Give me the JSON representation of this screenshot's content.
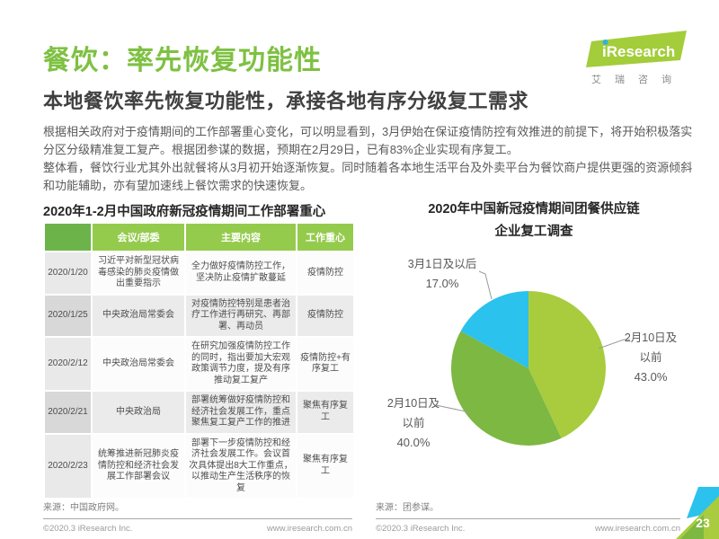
{
  "page": {
    "title": "餐饮：率先恢复功能性",
    "subtitle": "本地餐饮率先恢复功能性，承接各地有序分级复工需求",
    "paragraphs": [
      "根据相关政府对于疫情期间的工作部署重心变化，可以明显看到，3月伊始在保证疫情防控有效推进的前提下，将开始积极落实分区分级精准复工复产。根据团参谋的数据，预期在2月29日，已有83%企业实现有序复工。",
      "整体看，餐饮行业尤其外出就餐将从3月初开始逐渐恢复。同时随着各本地生活平台及外卖平台为餐饮商户提供更强的资源倾斜和功能辅助，亦有望加速线上餐饮需求的快速恢复。"
    ],
    "page_number": "23"
  },
  "logo": {
    "brand": "iResearch",
    "brand_cn": "艾瑞咨询",
    "brand_green": "#a3cd3a",
    "dot_blue": "#2bb3e6"
  },
  "table_section": {
    "title": "2020年1-2月中国政府新冠疫情期间工作部署重心",
    "headers": [
      "",
      "会议/部委",
      "主要内容",
      "工作重心"
    ],
    "rows": [
      {
        "date": "2020/1/20",
        "meeting": "习近平对新型冠状病毒感染的肺炎疫情做出重要指示",
        "content": "全力做好疫情防控工作，坚决防止疫情扩散蔓延",
        "focus": "疫情防控"
      },
      {
        "date": "2020/1/25",
        "meeting": "中央政治局常委会",
        "content": "对疫情防控特别是患者治疗工作进行再研究、再部署、再动员",
        "focus": "疫情防控"
      },
      {
        "date": "2020/2/12",
        "meeting": "中央政治局常委会",
        "content": "在研究加强疫情防控工作的同时，指出要加大宏观政策调节力度，提及有序推动复工复产",
        "focus": "疫情防控+有序复工"
      },
      {
        "date": "2020/2/21",
        "meeting": "中央政治局",
        "content": "部署统筹做好疫情防控和经济社会发展工作，重点聚焦复工复产工作的推进",
        "focus": "聚焦有序复工"
      },
      {
        "date": "2020/2/23",
        "meeting": "统筹推进新冠肺炎疫情防控和经济社会发展工作部署会议",
        "content": "部署下一步疫情防控和经济社会发展工作。会议首次具体提出8大工作重点，以推动生产生活秩序的恢复",
        "focus": "聚焦有序复工"
      }
    ],
    "source": "来源：中国政府网。",
    "header_green": "#95cb4d",
    "header_dark_green": "#6cb44a"
  },
  "chart_section": {
    "title_line1": "2020年中国新冠疫情期间团餐供应链",
    "title_line2": "企业复工调查",
    "source": "来源：团参谋。"
  },
  "chart_data": {
    "type": "pie",
    "title": "2020年中国新冠疫情期间团餐供应链企业复工调查",
    "start_angle_deg": 0,
    "direction": "clockwise",
    "legend_position": "outside-labels-with-leader-lines",
    "slices": [
      {
        "label": "2月10日及以前",
        "label_lines": [
          "2月10日及",
          "以前"
        ],
        "pct_label": "43.0%",
        "value": 43.0,
        "color": "#a8cc3e"
      },
      {
        "label": "2月10日及以前",
        "label_lines": [
          "2月10日及",
          "以前"
        ],
        "pct_label": "40.0%",
        "value": 40.0,
        "color": "#7cb842"
      },
      {
        "label": "3月1日及以后",
        "label_lines": [
          "3月1日及以后"
        ],
        "pct_label": "17.0%",
        "value": 17.0,
        "color": "#2bc2ed"
      }
    ]
  },
  "footer": {
    "copyright": "©2020.3 iResearch Inc.",
    "url": "www.iresearch.com.cn"
  },
  "colors": {
    "title_green": "#7ec142",
    "subtitle_gray": "#404040",
    "body_gray": "#5a5a5a",
    "corner_light_green": "#a8cc3e",
    "corner_dark_green": "#7cb842",
    "corner_cyan": "#2bc2ed"
  }
}
